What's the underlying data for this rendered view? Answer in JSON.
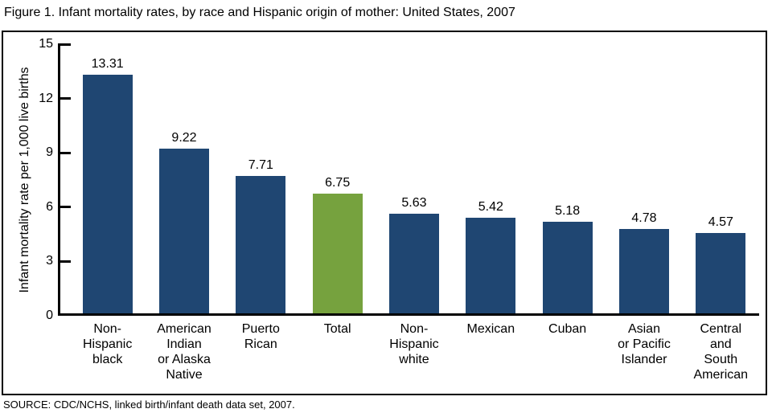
{
  "title": "Figure 1. Infant mortality rates, by race and Hispanic origin of mother: United States, 2007",
  "source": "SOURCE: CDC/NCHS, linked birth/infant death data set, 2007.",
  "colors": {
    "bar_default": "#1F4672",
    "bar_highlight": "#76A23E",
    "axis": "#000000",
    "background": "#FFFFFF"
  },
  "chart_data": {
    "type": "bar",
    "title": "Figure 1. Infant mortality rates, by race and Hispanic origin of mother: United States, 2007",
    "xlabel": "",
    "ylabel": "Infant mortality rate per 1,000 live births",
    "ylim": [
      0,
      15
    ],
    "yticks": [
      0,
      3,
      6,
      9,
      12,
      15
    ],
    "grid": false,
    "legend": false,
    "categories": [
      "Non-\nHispanic\nblack",
      "American\nIndian\nor Alaska\nNative",
      "Puerto\nRican",
      "Total",
      "Non-\nHispanic\nwhite",
      "Mexican",
      "Cuban",
      "Asian\nor Pacific\nIslander",
      "Central\nand\nSouth\nAmerican"
    ],
    "values": [
      13.31,
      9.22,
      7.71,
      6.75,
      5.63,
      5.42,
      5.18,
      4.78,
      4.57
    ],
    "value_labels": [
      "13.31",
      "9.22",
      "7.71",
      "6.75",
      "5.63",
      "5.42",
      "5.18",
      "4.78",
      "4.57"
    ],
    "highlight_index": 3,
    "highlight_category": "Total"
  }
}
